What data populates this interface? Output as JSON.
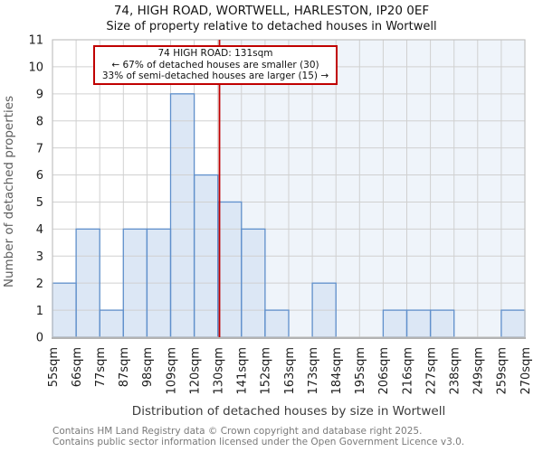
{
  "chart_data": {
    "type": "bar",
    "title": "74, HIGH ROAD, WORTWELL, HARLESTON, IP20 0EF",
    "subtitle": "Size of property relative to detached houses in Wortwell",
    "xlabel": "Distribution of detached houses by size in Wortwell",
    "ylabel": "Number of detached properties",
    "categories": [
      "55sqm",
      "66sqm",
      "77sqm",
      "87sqm",
      "98sqm",
      "109sqm",
      "120sqm",
      "130sqm",
      "141sqm",
      "152sqm",
      "163sqm",
      "173sqm",
      "184sqm",
      "195sqm",
      "206sqm",
      "216sqm",
      "227sqm",
      "238sqm",
      "249sqm",
      "259sqm",
      "270sqm"
    ],
    "values": [
      2,
      4,
      1,
      4,
      4,
      9,
      6,
      5,
      4,
      1,
      0,
      2,
      0,
      0,
      1,
      1,
      1,
      0,
      0,
      1
    ],
    "x_range_sqm": [
      55,
      270
    ],
    "ylim": [
      0,
      11
    ],
    "yticks": [
      0,
      1,
      2,
      3,
      4,
      5,
      6,
      7,
      8,
      9,
      10,
      11
    ],
    "grid": true,
    "legend": "none",
    "marker": {
      "value_sqm": 131,
      "smaller_count": 30,
      "smaller_pct": 67,
      "larger_count": 15,
      "larger_pct": 33
    },
    "annotation": {
      "lines": [
        "74 HIGH ROAD: 131sqm",
        "← 67% of detached houses are smaller (30)",
        "33% of semi-detached houses are larger (15) →"
      ]
    },
    "colors": {
      "bar_fill": "#dce7f5",
      "bar_edge": "#6090cc",
      "marker_line": "#c00000",
      "shade": "#dce7f5",
      "grid": "#d0d0d0",
      "frame": "#c2c2c2",
      "annotation_border": "#c00000"
    }
  },
  "footer": {
    "line1": "Contains HM Land Registry data © Crown copyright and database right 2025.",
    "line2": "Contains public sector information licensed under the Open Government Licence v3.0."
  }
}
